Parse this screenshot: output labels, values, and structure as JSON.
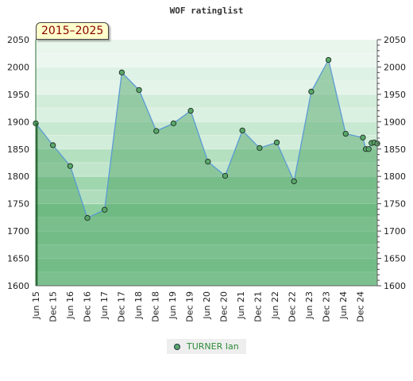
{
  "chart_data": {
    "type": "area",
    "title": "WOF ratinglist",
    "period_label": "2015–2025",
    "xlabel": "",
    "ylabel": "",
    "ylim": [
      1600,
      2050
    ],
    "yticks": [
      1600,
      1650,
      1700,
      1750,
      1800,
      1850,
      1900,
      1950,
      2000,
      2050
    ],
    "xticks": [
      "Jun 15",
      "Dec 15",
      "Jun 16",
      "Dec 16",
      "Jun 17",
      "Dec 17",
      "Jun 18",
      "Dec 18",
      "Jun 19",
      "Dec 19",
      "Jun 20",
      "Dec 20",
      "Jun 21",
      "Dec 21",
      "Jun 22",
      "Dec 22",
      "Jun 23",
      "Dec 23",
      "Jun 24",
      "Dec 24"
    ],
    "grid": true,
    "legend_position": "bottom",
    "series": [
      {
        "name": "TURNER Ian",
        "color": "#5aa86a",
        "points": [
          {
            "x": "2015-06",
            "y": 1897
          },
          {
            "x": "2015-12",
            "y": 1857
          },
          {
            "x": "2016-06",
            "y": 1819
          },
          {
            "x": "2016-12",
            "y": 1724
          },
          {
            "x": "2017-06",
            "y": 1739
          },
          {
            "x": "2017-12",
            "y": 1990
          },
          {
            "x": "2018-06",
            "y": 1958
          },
          {
            "x": "2018-12",
            "y": 1883
          },
          {
            "x": "2019-06",
            "y": 1897
          },
          {
            "x": "2019-12",
            "y": 1920
          },
          {
            "x": "2020-06",
            "y": 1827
          },
          {
            "x": "2020-12",
            "y": 1801
          },
          {
            "x": "2021-06",
            "y": 1884
          },
          {
            "x": "2021-12",
            "y": 1852
          },
          {
            "x": "2022-06",
            "y": 1862
          },
          {
            "x": "2022-12",
            "y": 1791
          },
          {
            "x": "2023-06",
            "y": 1955
          },
          {
            "x": "2023-12",
            "y": 2013
          },
          {
            "x": "2024-06",
            "y": 1878
          },
          {
            "x": "2024-12",
            "y": 1871
          },
          {
            "x": "2025-01",
            "y": 1850
          },
          {
            "x": "2025-02",
            "y": 1850
          },
          {
            "x": "2025-03",
            "y": 1861
          },
          {
            "x": "2025-04",
            "y": 1862
          },
          {
            "x": "2025-05",
            "y": 1860
          }
        ]
      }
    ]
  }
}
